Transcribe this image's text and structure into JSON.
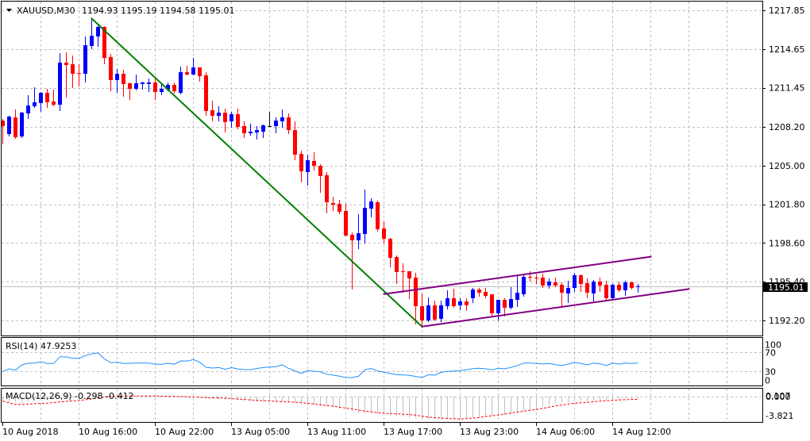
{
  "header": {
    "symbol_timeframe": "XAUUSD,M30",
    "ohlc_text": "1194.93 1195.19 1194.58 1195.01",
    "dropdown_icon": "triangle-down-icon"
  },
  "rsi_panel": {
    "label": "RSI(14) 47.9253"
  },
  "macd_panel": {
    "label": "MACD(12,26,9) -0.298 -0.412"
  },
  "colors": {
    "bull": "#0000ff",
    "bear": "#ff0000",
    "doji": "#000000",
    "trend_down": "#008000",
    "channel": "#800080",
    "rsi_line": "#1e90ff",
    "macd_hist": "#c0c0c0",
    "macd_signal": "#ff0000",
    "price_line": "#c0c0c0",
    "price_label_bg": "#000000",
    "price_label_fg": "#ffffff"
  },
  "chart_data": {
    "type": "candlestick",
    "title": "XAUUSD,M30",
    "symbol": "XAUUSD",
    "timeframe": "M30",
    "header_ohlc": {
      "open": 1194.93,
      "high": 1195.19,
      "low": 1194.58,
      "close": 1195.01
    },
    "current_price": {
      "value": 1195.01,
      "text": "1195.01"
    },
    "y_axis": {
      "ticks": [
        1217.85,
        1214.65,
        1211.45,
        1208.2,
        1205.0,
        1201.8,
        1198.6,
        1195.4,
        1192.2
      ],
      "tick_labels": [
        "1217.85",
        "1214.65",
        "1211.45",
        "1208.20",
        "1205.00",
        "1201.80",
        "1198.60",
        "1195.40",
        "1192.20"
      ],
      "grid": true
    },
    "x_axis": {
      "labels": [
        {
          "index": 0,
          "text": "10 Aug 2018"
        },
        {
          "index": 12,
          "text": "10 Aug 16:00"
        },
        {
          "index": 24,
          "text": "10 Aug 22:00"
        },
        {
          "index": 36,
          "text": "13 Aug 05:00"
        },
        {
          "index": 48,
          "text": "13 Aug 11:00"
        },
        {
          "index": 60,
          "text": "13 Aug 17:00"
        },
        {
          "index": 72,
          "text": "13 Aug 23:00"
        },
        {
          "index": 84,
          "text": "14 Aug 06:00"
        },
        {
          "index": 96,
          "text": "14 Aug 12:00"
        }
      ],
      "grid": true
    },
    "candles_format": "[open, high, low, close]",
    "candles": [
      [
        1208.73,
        1208.86,
        1206.83,
        1208.27
      ],
      [
        1207.61,
        1209.12,
        1207.48,
        1209.06
      ],
      [
        1208.99,
        1209.65,
        1207.29,
        1207.35
      ],
      [
        1207.42,
        1209.45,
        1207.35,
        1209.39
      ],
      [
        1209.32,
        1210.83,
        1208.93,
        1209.98
      ],
      [
        1209.91,
        1211.48,
        1209.84,
        1210.24
      ],
      [
        1210.17,
        1211.09,
        1209.52,
        1211.03
      ],
      [
        1211.03,
        1211.35,
        1209.84,
        1210.24
      ],
      [
        1210.3,
        1211.29,
        1209.98,
        1210.04
      ],
      [
        1210.04,
        1214.31,
        1209.58,
        1213.52
      ],
      [
        1213.52,
        1214.37,
        1210.7,
        1213.32
      ],
      [
        1213.39,
        1214.11,
        1211.48,
        1212.6
      ],
      [
        1212.67,
        1213.39,
        1211.62,
        1212.57
      ],
      [
        1212.6,
        1215.69,
        1211.94,
        1214.96
      ],
      [
        1214.9,
        1217.19,
        1214.7,
        1215.75
      ],
      [
        1215.69,
        1216.73,
        1214.9,
        1216.47
      ],
      [
        1216.47,
        1216.54,
        1213.46,
        1213.91
      ],
      [
        1213.98,
        1214.24,
        1211.22,
        1212.07
      ],
      [
        1212.07,
        1212.99,
        1211.09,
        1212.6
      ],
      [
        1212.6,
        1212.93,
        1210.76,
        1211.75
      ],
      [
        1211.81,
        1211.88,
        1210.5,
        1211.35
      ],
      [
        1211.35,
        1212.53,
        1211.29,
        1211.81
      ],
      [
        1211.75,
        1211.94,
        1211.35,
        1211.85
      ],
      [
        1211.75,
        1212.21,
        1211.16,
        1211.88
      ],
      [
        1211.88,
        1212.21,
        1210.5,
        1211.09
      ],
      [
        1211.09,
        1211.75,
        1210.89,
        1211.35
      ],
      [
        1211.29,
        1211.88,
        1211.22,
        1211.68
      ],
      [
        1211.68,
        1211.88,
        1211.03,
        1211.16
      ],
      [
        1211.03,
        1213.19,
        1210.96,
        1212.73
      ],
      [
        1212.73,
        1213.26,
        1212.53,
        1212.53
      ],
      [
        1212.53,
        1213.91,
        1212.53,
        1213.13
      ],
      [
        1213.13,
        1213.13,
        1212.01,
        1212.4
      ],
      [
        1212.47,
        1212.73,
        1209.19,
        1209.52
      ],
      [
        1209.58,
        1210.37,
        1208.73,
        1209.12
      ],
      [
        1209.12,
        1209.91,
        1208.73,
        1209.39
      ],
      [
        1209.39,
        1209.71,
        1207.81,
        1208.6
      ],
      [
        1208.66,
        1209.45,
        1208.2,
        1209.25
      ],
      [
        1209.25,
        1209.71,
        1208.07,
        1208.2
      ],
      [
        1208.27,
        1208.66,
        1207.35,
        1207.68
      ],
      [
        1207.68,
        1208.47,
        1207.55,
        1207.81
      ],
      [
        1207.75,
        1208.27,
        1207.22,
        1207.94
      ],
      [
        1207.81,
        1208.4,
        1207.35,
        1208.34
      ],
      [
        1208.3,
        1209.45,
        1208.27,
        1208.3
      ],
      [
        1208.27,
        1208.99,
        1207.75,
        1208.73
      ],
      [
        1208.66,
        1209.65,
        1208.2,
        1208.99
      ],
      [
        1208.99,
        1209.32,
        1207.68,
        1207.94
      ],
      [
        1207.94,
        1208.66,
        1205.52,
        1205.91
      ],
      [
        1205.97,
        1206.24,
        1203.68,
        1204.53
      ],
      [
        1204.47,
        1205.91,
        1203.42,
        1205.45
      ],
      [
        1205.38,
        1206.11,
        1204.66,
        1204.99
      ],
      [
        1204.99,
        1205.12,
        1202.83,
        1204.14
      ],
      [
        1204.2,
        1204.47,
        1201.12,
        1201.97
      ],
      [
        1201.91,
        1202.43,
        1201.32,
        1201.78
      ],
      [
        1201.84,
        1202.17,
        1201.05,
        1201.19
      ],
      [
        1201.25,
        1201.84,
        1199.22,
        1199.22
      ],
      [
        1199.28,
        1199.48,
        1194.82,
        1198.82
      ],
      [
        1198.82,
        1200.99,
        1198.17,
        1199.41
      ],
      [
        1199.35,
        1203.02,
        1198.63,
        1201.51
      ],
      [
        1201.45,
        1202.3,
        1200.79,
        1202.04
      ],
      [
        1201.97,
        1202.1,
        1199.61,
        1199.74
      ],
      [
        1199.81,
        1200.4,
        1198.63,
        1198.95
      ],
      [
        1198.95,
        1199.02,
        1196.66,
        1197.38
      ],
      [
        1197.45,
        1197.58,
        1195.28,
        1196.2
      ],
      [
        1196.27,
        1196.92,
        1194.56,
        1196.2
      ],
      [
        1196.27,
        1196.27,
        1194.03,
        1195.67
      ],
      [
        1195.74,
        1196.13,
        1191.94,
        1193.38
      ],
      [
        1193.38,
        1194.43,
        1191.67,
        1192.2
      ],
      [
        1192.2,
        1194.1,
        1192.13,
        1193.44
      ],
      [
        1193.44,
        1193.84,
        1192.2,
        1192.26
      ],
      [
        1192.33,
        1193.84,
        1192.13,
        1193.44
      ],
      [
        1193.38,
        1194.69,
        1193.18,
        1194.03
      ],
      [
        1194.03,
        1194.82,
        1193.31,
        1193.38
      ],
      [
        1193.44,
        1194.03,
        1193.12,
        1193.77
      ],
      [
        1193.77,
        1194.03,
        1193.05,
        1193.44
      ],
      [
        1194.03,
        1194.89,
        1193.71,
        1194.76
      ],
      [
        1194.76,
        1194.89,
        1194.23,
        1194.49
      ],
      [
        1194.56,
        1194.89,
        1194.1,
        1194.23
      ],
      [
        1194.36,
        1194.36,
        1192.59,
        1192.79
      ],
      [
        1192.79,
        1193.9,
        1192.26,
        1193.9
      ],
      [
        1193.9,
        1194.03,
        1192.59,
        1193.25
      ],
      [
        1193.25,
        1194.95,
        1193.18,
        1193.97
      ],
      [
        1193.9,
        1195.94,
        1193.38,
        1194.49
      ],
      [
        1194.36,
        1195.94,
        1194.23,
        1195.81
      ],
      [
        1195.81,
        1196.27,
        1195.48,
        1195.71
      ],
      [
        1195.76,
        1196.0,
        1195.28,
        1195.71
      ],
      [
        1195.74,
        1196.07,
        1194.95,
        1195.08
      ],
      [
        1195.08,
        1195.67,
        1194.89,
        1195.41
      ],
      [
        1195.35,
        1195.74,
        1195.02,
        1195.08
      ],
      [
        1195.15,
        1195.35,
        1193.31,
        1194.49
      ],
      [
        1194.43,
        1195.48,
        1193.71,
        1194.89
      ],
      [
        1194.89,
        1196.13,
        1194.63,
        1195.94
      ],
      [
        1195.94,
        1196.0,
        1194.63,
        1195.22
      ],
      [
        1195.28,
        1195.67,
        1194.1,
        1194.49
      ],
      [
        1194.43,
        1195.54,
        1193.84,
        1195.41
      ],
      [
        1195.41,
        1195.74,
        1194.63,
        1195.08
      ],
      [
        1195.15,
        1195.48,
        1193.84,
        1194.03
      ],
      [
        1194.03,
        1195.22,
        1193.97,
        1195.15
      ],
      [
        1195.15,
        1195.41,
        1194.63,
        1194.69
      ],
      [
        1194.69,
        1195.48,
        1194.3,
        1195.35
      ],
      [
        1195.35,
        1195.41,
        1194.82,
        1194.89
      ],
      [
        1194.93,
        1195.19,
        1194.58,
        1195.01
      ]
    ],
    "trendlines": [
      {
        "name": "downtrend-line",
        "color_key": "trend_down",
        "from": {
          "index": 14,
          "price": 1217.17
        },
        "to": {
          "index": 66,
          "price": 1191.69
        }
      },
      {
        "name": "channel-upper-line",
        "color_key": "channel",
        "from": {
          "index": 60,
          "price": 1194.38
        },
        "to": {
          "index": 102,
          "price": 1197.47
        }
      },
      {
        "name": "channel-lower-line",
        "color_key": "channel",
        "from": {
          "index": 66,
          "price": 1191.69
        },
        "to": {
          "index": 108,
          "price": 1194.8
        }
      }
    ],
    "indicators": {
      "rsi": {
        "period": 14,
        "current": 47.9253,
        "levels": [
          70,
          30
        ],
        "scale": [
          {
            "value": 100,
            "text": "100"
          },
          {
            "value": 70,
            "text": "70"
          },
          {
            "value": 30,
            "text": "30"
          },
          {
            "value": 0,
            "text": "0"
          }
        ],
        "values": [
          30.0,
          35.5,
          32.7,
          43.8,
          47.2,
          47.7,
          50.5,
          46.7,
          46.7,
          61.0,
          60.5,
          57.7,
          57.7,
          63.3,
          67.2,
          68.8,
          56.3,
          48.3,
          49.3,
          46.7,
          47.2,
          47.5,
          47.7,
          47.7,
          45.0,
          45.0,
          47.3,
          45.0,
          52.2,
          52.0,
          54.8,
          49.5,
          38.7,
          37.2,
          38.2,
          34.5,
          38.2,
          35.2,
          33.8,
          33.8,
          36.1,
          38.2,
          39.2,
          40.2,
          43.8,
          36.3,
          31.2,
          25.8,
          31.7,
          30.3,
          29.2,
          24.3,
          22.2,
          20.0,
          17.2,
          17.2,
          19.8,
          33.5,
          36.3,
          30.8,
          28.3,
          25.5,
          23.2,
          22.8,
          21.8,
          19.5,
          17.3,
          23.0,
          22.2,
          28.2,
          30.2,
          30.8,
          31.5,
          33.3,
          35.8,
          36.7,
          35.5,
          33.3,
          36.7,
          35.7,
          38.3,
          42.5,
          47.7,
          47.7,
          46.7,
          45.7,
          46.7,
          44.3,
          42.3,
          45.5,
          49.2,
          46.8,
          43.8,
          47.5,
          46.0,
          42.5,
          47.5,
          45.5,
          47.7,
          46.7,
          47.93
        ]
      },
      "macd": {
        "params": [
          12,
          26,
          9
        ],
        "current_main": -0.298,
        "current_signal": -0.412,
        "scale": [
          {
            "value": 0.107,
            "text": "0.107"
          },
          {
            "value": 0.0,
            "text": "0.000"
          },
          {
            "value": -3.821,
            "text": "-3.821"
          }
        ],
        "main": [
          -0.9,
          -0.95,
          -0.95,
          -0.9,
          -0.8,
          -0.7,
          -0.6,
          -0.5,
          -0.45,
          -0.3,
          -0.2,
          -0.15,
          -0.1,
          0.0,
          0.05,
          0.1,
          0.107,
          0.08,
          0.06,
          0.04,
          0.02,
          0.0,
          -0.02,
          -0.04,
          -0.08,
          -0.1,
          -0.12,
          -0.15,
          -0.12,
          -0.1,
          -0.08,
          -0.1,
          -0.25,
          -0.35,
          -0.42,
          -0.5,
          -0.55,
          -0.62,
          -0.7,
          -0.75,
          -0.8,
          -0.82,
          -0.83,
          -0.83,
          -0.82,
          -0.86,
          -1.0,
          -1.15,
          -1.2,
          -1.25,
          -1.35,
          -1.55,
          -1.7,
          -1.85,
          -2.1,
          -2.35,
          -2.6,
          -2.65,
          -2.6,
          -2.65,
          -2.75,
          -2.9,
          -3.05,
          -3.15,
          -3.25,
          -3.4,
          -3.55,
          -3.58,
          -3.58,
          -3.55,
          -3.5,
          -3.45,
          -3.4,
          -3.35,
          -3.25,
          -3.15,
          -3.05,
          -3.05,
          -2.95,
          -2.9,
          -2.75,
          -2.55,
          -2.3,
          -2.1,
          -1.9,
          -1.6,
          -1.3,
          -1.05,
          -0.95,
          -0.85,
          -0.75,
          -0.7,
          -0.68,
          -0.62,
          -0.58,
          -0.55,
          -0.5,
          -0.45,
          -0.4,
          -0.35,
          -0.298
        ],
        "signal": [
          -0.7,
          -0.99,
          -1.23,
          -1.23,
          -1.17,
          -1.11,
          -1.06,
          -1.02,
          -0.93,
          -0.84,
          -0.75,
          -0.67,
          -0.62,
          -0.49,
          -0.36,
          -0.22,
          -0.09,
          0.0,
          0.05,
          0.09,
          0.1,
          0.1,
          0.1,
          0.1,
          0.09,
          0.06,
          0.04,
          0.01,
          0.0,
          -0.04,
          -0.07,
          -0.11,
          -0.16,
          -0.19,
          -0.21,
          -0.25,
          -0.32,
          -0.38,
          -0.44,
          -0.52,
          -0.58,
          -0.63,
          -0.68,
          -0.74,
          -0.79,
          -0.84,
          -0.89,
          -0.95,
          -1.05,
          -1.15,
          -1.28,
          -1.4,
          -1.48,
          -1.65,
          -1.78,
          -1.94,
          -2.1,
          -2.25,
          -2.38,
          -2.49,
          -2.59,
          -2.64,
          -2.69,
          -2.74,
          -2.79,
          -2.89,
          -3.05,
          -3.2,
          -3.28,
          -3.35,
          -3.4,
          -3.44,
          -3.49,
          -3.43,
          -3.35,
          -3.23,
          -3.11,
          -2.99,
          -2.86,
          -2.72,
          -2.57,
          -2.41,
          -2.27,
          -2.14,
          -2.0,
          -1.83,
          -1.64,
          -1.46,
          -1.31,
          -1.17,
          -1.02,
          -0.96,
          -0.9,
          -0.8,
          -0.72,
          -0.65,
          -0.58,
          -0.52,
          -0.48,
          -0.44,
          -0.412
        ]
      }
    }
  }
}
